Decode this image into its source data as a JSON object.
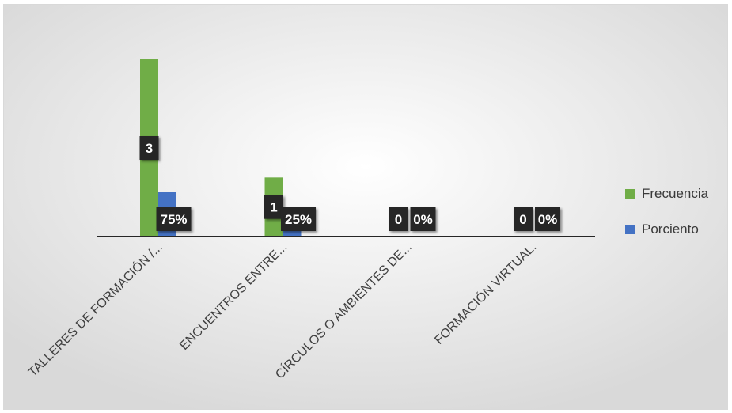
{
  "chart_data": {
    "type": "bar",
    "title": "",
    "xlabel": "",
    "ylabel": "",
    "categories": [
      "TALLERES DE FORMACIÓN /...",
      "ENCUENTROS ENTRE...",
      "CÍRCULOS O AMBIENTES DE...",
      "FORMACIÓN VIRTUAL."
    ],
    "series": [
      {
        "name": "Frecuencia",
        "values": [
          3,
          1,
          0,
          0
        ],
        "labels": [
          "3",
          "1",
          "0",
          "0"
        ],
        "color": "#70ad47"
      },
      {
        "name": "Porciento",
        "values": [
          0.75,
          0.25,
          0,
          0
        ],
        "labels": [
          "75%",
          "25%",
          "0%",
          "0%"
        ],
        "color": "#4472c4"
      }
    ],
    "ylim": [
      0,
      3
    ],
    "grid": false,
    "legend_position": "right"
  }
}
